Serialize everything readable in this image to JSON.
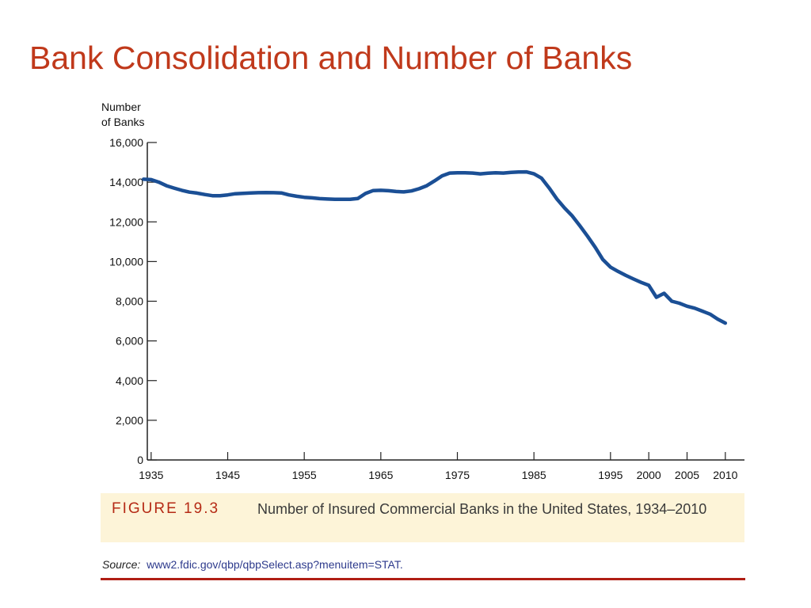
{
  "slide_title": "Bank Consolidation and Number of Banks",
  "colors": {
    "title": "#c0391b",
    "line": "#1b4f95",
    "caption_bg": "#fdf4d8",
    "figure_label": "#b52a15",
    "rule": "#b01e14"
  },
  "chart_data": {
    "type": "line",
    "ylabel_line1": "Number",
    "ylabel_line2": "of Banks",
    "xlabel": "",
    "xlim": [
      1934.5,
      2012.5
    ],
    "ylim": [
      0,
      16000
    ],
    "xticks": [
      1935,
      1945,
      1955,
      1965,
      1975,
      1985,
      1995,
      2000,
      2005,
      2010
    ],
    "xtick_labels": [
      "1935",
      "1945",
      "1955",
      "1965",
      "1975",
      "1985",
      "1995",
      "2000",
      "2005",
      "2010"
    ],
    "yticks": [
      0,
      2000,
      4000,
      6000,
      8000,
      10000,
      12000,
      14000,
      16000
    ],
    "ytick_labels": [
      "0",
      "2,000",
      "4,000",
      "6,000",
      "8,000",
      "10,000",
      "12,000",
      "14,000",
      "16,000"
    ],
    "grid": false,
    "series": [
      {
        "x": [
          1934,
          1935,
          1936,
          1937,
          1938,
          1939,
          1940,
          1941,
          1942,
          1943,
          1944,
          1945,
          1946,
          1947,
          1948,
          1949,
          1950,
          1951,
          1952,
          1953,
          1954,
          1955,
          1956,
          1957,
          1958,
          1959,
          1960,
          1961,
          1962,
          1963,
          1964,
          1965,
          1966,
          1967,
          1968,
          1969,
          1970,
          1971,
          1972,
          1973,
          1974,
          1975,
          1976,
          1977,
          1978,
          1979,
          1980,
          1981,
          1982,
          1983,
          1984,
          1985,
          1986,
          1987,
          1988,
          1989,
          1990,
          1991,
          1992,
          1993,
          1994,
          1995,
          1996,
          1997,
          1998,
          1999,
          2000,
          2001,
          2002,
          2003,
          2004,
          2005,
          2006,
          2007,
          2008,
          2009,
          2010
        ],
        "values": [
          14150,
          14130,
          14000,
          13820,
          13700,
          13590,
          13500,
          13450,
          13380,
          13320,
          13320,
          13360,
          13420,
          13440,
          13460,
          13470,
          13480,
          13470,
          13460,
          13360,
          13290,
          13240,
          13210,
          13170,
          13150,
          13140,
          13140,
          13140,
          13180,
          13430,
          13580,
          13590,
          13570,
          13530,
          13510,
          13560,
          13670,
          13820,
          14060,
          14320,
          14460,
          14470,
          14470,
          14460,
          14420,
          14450,
          14470,
          14460,
          14490,
          14510,
          14520,
          14420,
          14200,
          13700,
          13150,
          12700,
          12300,
          11800,
          11280,
          10720,
          10100,
          9720,
          9500,
          9300,
          9120,
          8950,
          8800,
          8200,
          8400,
          8000,
          7900,
          7750,
          7650,
          7500,
          7350,
          7100,
          6900
        ]
      }
    ]
  },
  "caption": {
    "figure_label": "FIGURE 19.3",
    "text": "Number of Insured Commercial Banks in the United States, 1934–2010"
  },
  "source": {
    "label": "Source:",
    "url": "www2.fdic.gov/qbp/qbpSelect.asp?menuitem=STAT."
  }
}
